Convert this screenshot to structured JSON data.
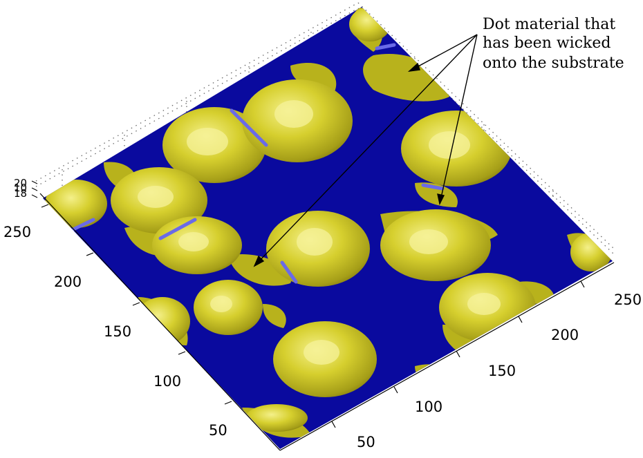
{
  "figure": {
    "annotation_lines": [
      "Dot material that",
      "has been wicked",
      "onto the substrate"
    ],
    "x_ticks": [
      "50",
      "100",
      "150",
      "200",
      "250"
    ],
    "y_ticks": [
      "50",
      "100",
      "150",
      "200",
      "250"
    ],
    "z_ticks": [
      "20",
      "10",
      "18"
    ],
    "colors": {
      "substrate": "#0a0a9e",
      "dot_material": "#c8c21e",
      "dot_highlight": "#f2ee7a",
      "dot_shadow": "#7a7410",
      "bevel_edge": "#6a6ae8",
      "grid_dots": "#666666"
    }
  }
}
